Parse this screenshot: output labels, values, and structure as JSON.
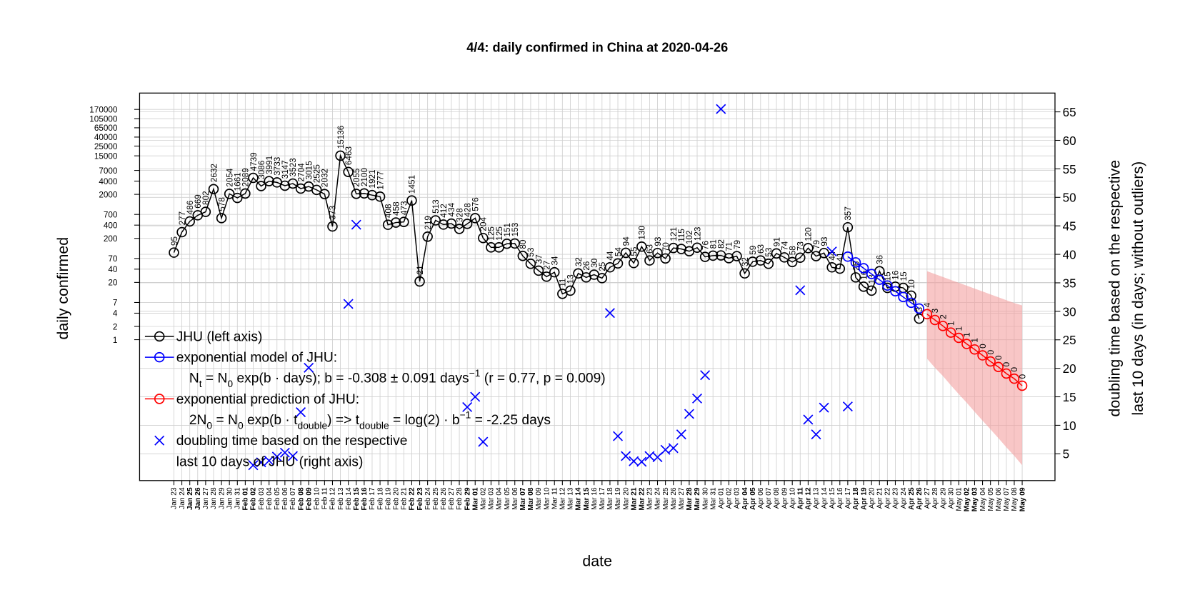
{
  "chart_data": {
    "type": "line",
    "title": "4/4: daily confirmed in China at 2020-04-26",
    "xlabel": "date",
    "ylabel": "daily confirmed",
    "y2label": [
      "doubling time based on the respective",
      "last 10 days (in days; without outliers)"
    ],
    "ylog": true,
    "grid": true,
    "legend_position": "bottomleft",
    "highlight_color": "#d08a00",
    "highlighted_categories": [
      2,
      3,
      9,
      10,
      16,
      17,
      23,
      24,
      30,
      31,
      37,
      38,
      44,
      45,
      51,
      52,
      58,
      59,
      65,
      66,
      72,
      73,
      79,
      80,
      86,
      87,
      93,
      94,
      100,
      101,
      107
    ],
    "ylim": [
      0.00063,
      400000
    ],
    "yticks": [
      1,
      2,
      4,
      7,
      20,
      40,
      70,
      200,
      400,
      700,
      2000,
      4000,
      7000,
      15000,
      25000,
      40000,
      65000,
      105000,
      170000
    ],
    "y2lim": [
      0.3,
      68.3
    ],
    "y2ticks": [
      5,
      10,
      15,
      20,
      25,
      30,
      35,
      40,
      45,
      50,
      55,
      60,
      65
    ],
    "categories": [
      "Jan 23",
      "Jan 24",
      "Jan 25",
      "Jan 26",
      "Jan 27",
      "Jan 28",
      "Jan 29",
      "Jan 30",
      "Jan 31",
      "Feb 01",
      "Feb 02",
      "Feb 03",
      "Feb 04",
      "Feb 05",
      "Feb 06",
      "Feb 07",
      "Feb 08",
      "Feb 09",
      "Feb 10",
      "Feb 11",
      "Feb 12",
      "Feb 13",
      "Feb 14",
      "Feb 15",
      "Feb 16",
      "Feb 17",
      "Feb 18",
      "Feb 19",
      "Feb 20",
      "Feb 21",
      "Feb 22",
      "Feb 23",
      "Feb 24",
      "Feb 25",
      "Feb 26",
      "Feb 27",
      "Feb 28",
      "Feb 29",
      "Mar 01",
      "Mar 02",
      "Mar 03",
      "Mar 04",
      "Mar 05",
      "Mar 06",
      "Mar 07",
      "Mar 08",
      "Mar 09",
      "Mar 10",
      "Mar 11",
      "Mar 12",
      "Mar 13",
      "Mar 14",
      "Mar 15",
      "Mar 16",
      "Mar 17",
      "Mar 18",
      "Mar 19",
      "Mar 20",
      "Mar 21",
      "Mar 22",
      "Mar 23",
      "Mar 24",
      "Mar 25",
      "Mar 26",
      "Mar 27",
      "Mar 28",
      "Mar 29",
      "Mar 30",
      "Mar 31",
      "Apr 01",
      "Apr 02",
      "Apr 03",
      "Apr 04",
      "Apr 05",
      "Apr 06",
      "Apr 07",
      "Apr 08",
      "Apr 09",
      "Apr 10",
      "Apr 11",
      "Apr 12",
      "Apr 13",
      "Apr 14",
      "Apr 15",
      "Apr 16",
      "Apr 17",
      "Apr 18",
      "Apr 19",
      "Apr 20",
      "Apr 21",
      "Apr 22",
      "Apr 23",
      "Apr 24",
      "Apr 25",
      "Apr 26",
      "Apr 27",
      "Apr 28",
      "Apr 29",
      "Apr 30",
      "May 01",
      "May 02",
      "May 03",
      "May 04",
      "May 05",
      "May 06",
      "May 07",
      "May 08",
      "May 09"
    ],
    "band": {
      "color": "#f4a0a0",
      "upper": [
        null,
        null,
        null,
        null,
        null,
        null,
        null,
        null,
        null,
        null,
        null,
        null,
        null,
        null,
        null,
        null,
        null,
        null,
        null,
        null,
        null,
        null,
        null,
        null,
        null,
        null,
        null,
        null,
        null,
        null,
        null,
        null,
        null,
        null,
        null,
        null,
        null,
        null,
        null,
        null,
        null,
        null,
        null,
        null,
        null,
        null,
        null,
        null,
        null,
        null,
        null,
        null,
        null,
        null,
        null,
        null,
        null,
        null,
        null,
        null,
        null,
        null,
        null,
        null,
        null,
        null,
        null,
        null,
        null,
        null,
        null,
        null,
        null,
        null,
        null,
        null,
        null,
        null,
        null,
        null,
        null,
        null,
        null,
        null,
        null,
        null,
        null,
        null,
        null,
        null,
        null,
        null,
        null,
        null,
        null,
        36,
        30.9,
        26.6,
        22.8,
        19.6,
        16.9,
        14.5,
        12.5,
        10.7,
        9.2,
        7.9,
        6.8,
        6.0
      ],
      "lower": [
        null,
        null,
        null,
        null,
        null,
        null,
        null,
        null,
        null,
        null,
        null,
        null,
        null,
        null,
        null,
        null,
        null,
        null,
        null,
        null,
        null,
        null,
        null,
        null,
        null,
        null,
        null,
        null,
        null,
        null,
        null,
        null,
        null,
        null,
        null,
        null,
        null,
        null,
        null,
        null,
        null,
        null,
        null,
        null,
        null,
        null,
        null,
        null,
        null,
        null,
        null,
        null,
        null,
        null,
        null,
        null,
        null,
        null,
        null,
        null,
        null,
        null,
        null,
        null,
        null,
        null,
        null,
        null,
        null,
        null,
        null,
        null,
        null,
        null,
        null,
        null,
        null,
        null,
        null,
        null,
        null,
        null,
        null,
        null,
        null,
        null,
        null,
        null,
        null,
        null,
        null,
        null,
        null,
        null,
        null,
        0.37,
        0.23,
        0.15,
        0.092,
        0.058,
        0.037,
        0.023,
        0.0145,
        0.0092,
        0.0058,
        0.0036,
        0.0023,
        0.0014
      ]
    },
    "series": [
      {
        "name": "JHU (left axis)",
        "color": "#000000",
        "marker": "circle",
        "lines": true,
        "labels": true,
        "values": [
          95,
          277,
          486,
          669,
          802,
          2632,
          578,
          2054,
          1661,
          2089,
          4739,
          3086,
          3991,
          3733,
          3147,
          3523,
          2704,
          3015,
          2525,
          2032,
          373,
          15136,
          6463,
          2055,
          2100,
          1921,
          1777,
          408,
          458,
          473,
          1451,
          21,
          219,
          513,
          412,
          434,
          328,
          428,
          576,
          204,
          125,
          125,
          151,
          153,
          80,
          53,
          37,
          27,
          34,
          11,
          13,
          32,
          26,
          30,
          25,
          44,
          54,
          94,
          55,
          130,
          63,
          93,
          70,
          121,
          115,
          102,
          123,
          76,
          81,
          82,
          71,
          79,
          32,
          59,
          63,
          53,
          91,
          74,
          58,
          73,
          120,
          79,
          93,
          44,
          41,
          357,
          26,
          16,
          13,
          36,
          15,
          16,
          15,
          10,
          3,
          null,
          null,
          null,
          null,
          null,
          null,
          null,
          null,
          null,
          null,
          null,
          null,
          null
        ]
      },
      {
        "name": "exponential model of JHU:",
        "color": "#0000ff",
        "marker": "circle",
        "lines": true,
        "legend_extra": [
          [
            {
              "t": "N"
            },
            {
              "sub": "t"
            },
            {
              "t": " = N"
            },
            {
              "sub": "0"
            },
            {
              "t": " exp(b · days); b = -0.308 ± 0.091 days"
            },
            {
              "sup": "−1"
            },
            {
              "t": " (r = 0.77, p = 0.009)"
            }
          ]
        ],
        "values": [
          null,
          null,
          null,
          null,
          null,
          null,
          null,
          null,
          null,
          null,
          null,
          null,
          null,
          null,
          null,
          null,
          null,
          null,
          null,
          null,
          null,
          null,
          null,
          null,
          null,
          null,
          null,
          null,
          null,
          null,
          null,
          null,
          null,
          null,
          null,
          null,
          null,
          null,
          null,
          null,
          null,
          null,
          null,
          null,
          null,
          null,
          null,
          null,
          null,
          null,
          null,
          null,
          null,
          null,
          null,
          null,
          null,
          null,
          null,
          null,
          null,
          null,
          null,
          null,
          null,
          null,
          null,
          null,
          null,
          null,
          null,
          null,
          null,
          null,
          null,
          null,
          null,
          null,
          null,
          null,
          null,
          null,
          null,
          null,
          null,
          77,
          57,
          42,
          31,
          23,
          17,
          12.6,
          9.3,
          6.9,
          5.1,
          null,
          null,
          null,
          null,
          null,
          null,
          null,
          null,
          null,
          null,
          null,
          null,
          null
        ]
      },
      {
        "name": "exponential prediction of JHU:",
        "color": "#ff0000",
        "marker": "circle",
        "lines": true,
        "labels": true,
        "legend_extra": [
          [
            {
              "t": "2N"
            },
            {
              "sub": "0"
            },
            {
              "t": " = N"
            },
            {
              "sub": "0"
            },
            {
              "t": " exp(b · t"
            },
            {
              "sub": "double"
            },
            {
              "t": ") => t"
            },
            {
              "sub": "double"
            },
            {
              "t": " = log(2) · b"
            },
            {
              "sup": "−1"
            },
            {
              "t": " = -2.25 days"
            }
          ]
        ],
        "values": [
          null,
          null,
          null,
          null,
          null,
          null,
          null,
          null,
          null,
          null,
          null,
          null,
          null,
          null,
          null,
          null,
          null,
          null,
          null,
          null,
          null,
          null,
          null,
          null,
          null,
          null,
          null,
          null,
          null,
          null,
          null,
          null,
          null,
          null,
          null,
          null,
          null,
          null,
          null,
          null,
          null,
          null,
          null,
          null,
          null,
          null,
          null,
          null,
          null,
          null,
          null,
          null,
          null,
          null,
          null,
          null,
          null,
          null,
          null,
          null,
          null,
          null,
          null,
          null,
          null,
          null,
          null,
          null,
          null,
          null,
          null,
          null,
          null,
          null,
          null,
          null,
          null,
          null,
          null,
          null,
          null,
          null,
          null,
          null,
          null,
          null,
          null,
          null,
          null,
          null,
          null,
          null,
          null,
          null,
          null,
          3.8,
          2.8,
          2.05,
          1.45,
          1.1,
          0.8,
          0.6,
          0.44,
          0.32,
          0.24,
          0.17,
          0.13,
          0.09
        ],
        "value_labels": [
          null,
          null,
          null,
          null,
          null,
          null,
          null,
          null,
          null,
          null,
          null,
          null,
          null,
          null,
          null,
          null,
          null,
          null,
          null,
          null,
          null,
          null,
          null,
          null,
          null,
          null,
          null,
          null,
          null,
          null,
          null,
          null,
          null,
          null,
          null,
          null,
          null,
          null,
          null,
          null,
          null,
          null,
          null,
          null,
          null,
          null,
          null,
          null,
          null,
          null,
          null,
          null,
          null,
          null,
          null,
          null,
          null,
          null,
          null,
          null,
          null,
          null,
          null,
          null,
          null,
          null,
          null,
          null,
          null,
          null,
          null,
          null,
          null,
          null,
          null,
          null,
          null,
          null,
          null,
          null,
          null,
          null,
          null,
          null,
          null,
          null,
          null,
          null,
          null,
          null,
          null,
          null,
          null,
          null,
          null,
          "4",
          "3",
          "2",
          "1",
          "1",
          "1",
          "1",
          "0",
          "0",
          "0",
          "0",
          "0",
          "0"
        ]
      },
      {
        "name": "doubling time based on the respective",
        "color": "#0000ff",
        "marker": "x",
        "lines": false,
        "axis": "y2",
        "legend_extra": [
          [
            {
              "t": "last 10 days of JHU (right axis)"
            }
          ]
        ],
        "values": [
          null,
          null,
          null,
          null,
          null,
          null,
          null,
          null,
          null,
          null,
          3.0,
          3.5,
          3.8,
          4.5,
          5.2,
          4.6,
          12.3,
          20.1,
          null,
          null,
          null,
          null,
          31.3,
          45.2,
          null,
          null,
          null,
          null,
          null,
          null,
          null,
          null,
          null,
          null,
          null,
          null,
          null,
          13.2,
          15.0,
          7.1,
          null,
          null,
          null,
          null,
          null,
          null,
          null,
          null,
          null,
          null,
          null,
          null,
          null,
          null,
          null,
          29.7,
          8.1,
          4.6,
          3.7,
          3.6,
          4.6,
          4.4,
          5.7,
          6.0,
          8.4,
          12.0,
          14.7,
          18.8,
          null,
          65.5,
          null,
          null,
          null,
          null,
          null,
          null,
          null,
          null,
          null,
          33.7,
          11.0,
          8.4,
          13.1,
          40.5,
          null,
          13.3,
          null,
          null,
          null,
          null,
          null,
          null,
          null,
          null,
          null,
          null,
          null,
          null,
          null,
          null,
          null,
          null,
          null,
          null,
          null,
          null,
          null,
          null
        ]
      }
    ]
  }
}
